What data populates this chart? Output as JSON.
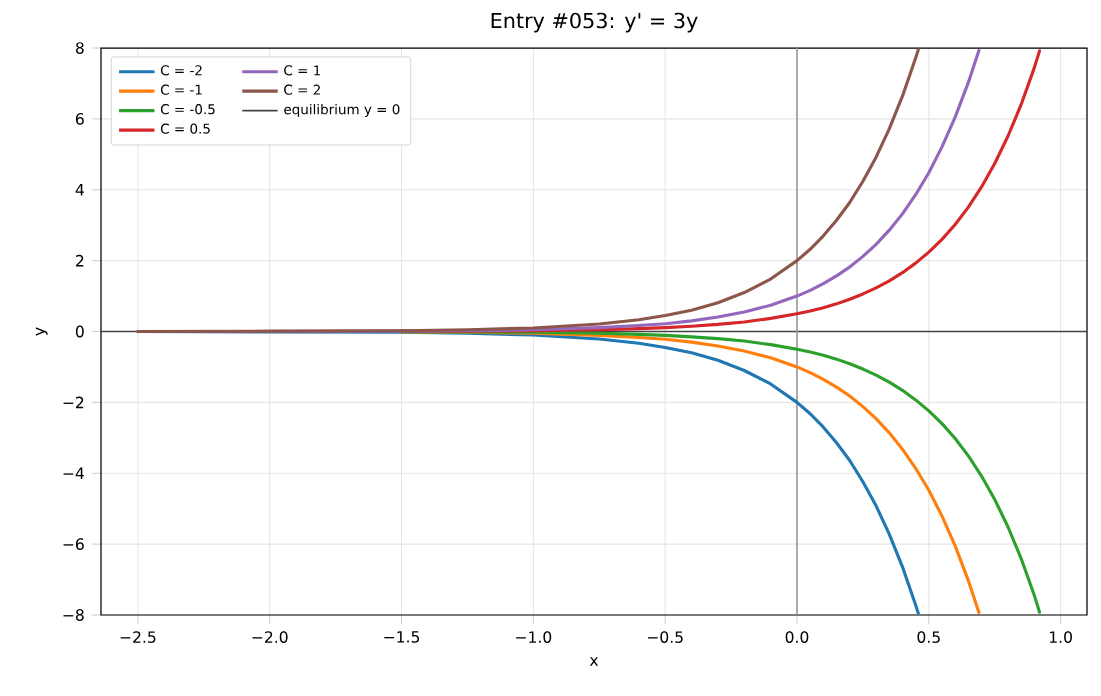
{
  "chart_data": {
    "type": "line",
    "title": "Entry #053: y' = 3y",
    "xlabel": "x",
    "ylabel": "y",
    "xlim": [
      -2.64,
      1.1
    ],
    "ylim": [
      -8,
      8
    ],
    "xticks": [
      {
        "value": -2.5,
        "label": "−2.5"
      },
      {
        "value": -2.0,
        "label": "−2.0"
      },
      {
        "value": -1.5,
        "label": "−1.5"
      },
      {
        "value": -1.0,
        "label": "−1.0"
      },
      {
        "value": -0.5,
        "label": "−0.5"
      },
      {
        "value": 0.0,
        "label": "0.0"
      },
      {
        "value": 0.5,
        "label": "0.5"
      },
      {
        "value": 1.0,
        "label": "1.0"
      }
    ],
    "yticks": [
      {
        "value": -8,
        "label": "−8"
      },
      {
        "value": -6,
        "label": "−6"
      },
      {
        "value": -4,
        "label": "−4"
      },
      {
        "value": -2,
        "label": "−2"
      },
      0,
      2,
      4,
      6,
      8
    ],
    "grid": true,
    "legend": "top left",
    "line_style": "solid",
    "marker": "none",
    "series": [
      {
        "name": "C = -2",
        "color": "#1f77b4",
        "x": [
          -2.5,
          -2,
          -1.5,
          -1.25,
          -1,
          -0.75,
          -0.6,
          -0.5,
          -0.4,
          -0.3,
          -0.2,
          -0.1,
          0,
          0.05,
          0.1,
          0.15,
          0.2,
          0.25,
          0.3,
          0.35,
          0.4,
          0.45,
          0.46
        ],
        "values": [
          0,
          -0.01,
          -0.02,
          -0.05,
          -0.1,
          -0.21,
          -0.33,
          -0.45,
          -0.6,
          -0.81,
          -1.1,
          -1.48,
          -2,
          -2.32,
          -2.7,
          -3.14,
          -3.64,
          -4.24,
          -4.92,
          -5.72,
          -6.64,
          -7.72,
          -7.95
        ]
      },
      {
        "name": "C = -1",
        "color": "#ff7f0e",
        "x": [
          -1.5,
          -1.25,
          -1,
          -0.75,
          -0.6,
          -0.5,
          -0.4,
          -0.3,
          -0.2,
          -0.1,
          0,
          0.05,
          0.1,
          0.15,
          0.2,
          0.25,
          0.3,
          0.35,
          0.4,
          0.45,
          0.5,
          0.55,
          0.6,
          0.65,
          0.69
        ],
        "values": [
          -0.01,
          -0.02,
          -0.05,
          -0.11,
          -0.17,
          -0.22,
          -0.3,
          -0.41,
          -0.55,
          -0.74,
          -1,
          -1.16,
          -1.35,
          -1.57,
          -1.82,
          -2.12,
          -2.46,
          -2.86,
          -3.32,
          -3.86,
          -4.48,
          -5.21,
          -6.05,
          -7.03,
          -7.93
        ]
      },
      {
        "name": "C = -0.5",
        "color": "#2ca02c",
        "x": [
          -1.5,
          -1.25,
          -1,
          -0.75,
          -0.6,
          -0.5,
          -0.4,
          -0.3,
          -0.2,
          -0.1,
          0,
          0.05,
          0.1,
          0.15,
          0.2,
          0.25,
          0.3,
          0.35,
          0.4,
          0.45,
          0.5,
          0.55,
          0.6,
          0.65,
          0.7,
          0.75,
          0.8,
          0.85,
          0.9,
          0.92
        ],
        "values": [
          -0.01,
          -0.01,
          -0.02,
          -0.05,
          -0.08,
          -0.11,
          -0.15,
          -0.2,
          -0.27,
          -0.37,
          -0.5,
          -0.58,
          -0.67,
          -0.78,
          -0.91,
          -1.06,
          -1.23,
          -1.43,
          -1.66,
          -1.93,
          -2.24,
          -2.6,
          -3.02,
          -3.51,
          -4.08,
          -4.74,
          -5.51,
          -6.4,
          -7.44,
          -7.92
        ]
      },
      {
        "name": "C = 0.5",
        "color": "#d62728",
        "x": [
          -1.5,
          -1.25,
          -1,
          -0.75,
          -0.6,
          -0.5,
          -0.4,
          -0.3,
          -0.2,
          -0.1,
          0,
          0.05,
          0.1,
          0.15,
          0.2,
          0.25,
          0.3,
          0.35,
          0.4,
          0.45,
          0.5,
          0.55,
          0.6,
          0.65,
          0.7,
          0.75,
          0.8,
          0.85,
          0.9,
          0.92
        ],
        "values": [
          0.01,
          0.01,
          0.02,
          0.05,
          0.08,
          0.11,
          0.15,
          0.2,
          0.27,
          0.37,
          0.5,
          0.58,
          0.67,
          0.78,
          0.91,
          1.06,
          1.23,
          1.43,
          1.66,
          1.93,
          2.24,
          2.6,
          3.02,
          3.51,
          4.08,
          4.74,
          5.51,
          6.4,
          7.44,
          7.92
        ]
      },
      {
        "name": "C = 1",
        "color": "#9467bd",
        "x": [
          -2.5,
          -2,
          -1.5,
          -1.25,
          -1,
          -0.75,
          -0.6,
          -0.5,
          -0.4,
          -0.3,
          -0.2,
          -0.1,
          0,
          0.05,
          0.1,
          0.15,
          0.2,
          0.25,
          0.3,
          0.35,
          0.4,
          0.45,
          0.5,
          0.55,
          0.6,
          0.65,
          0.69
        ],
        "values": [
          0,
          0,
          0.01,
          0.02,
          0.05,
          0.11,
          0.17,
          0.22,
          0.3,
          0.41,
          0.55,
          0.74,
          1,
          1.16,
          1.35,
          1.57,
          1.82,
          2.12,
          2.46,
          2.86,
          3.32,
          3.86,
          4.48,
          5.21,
          6.05,
          7.03,
          7.93
        ]
      },
      {
        "name": "C = 2",
        "color": "#8c564b",
        "x": [
          -2.5,
          -2,
          -1.5,
          -1.25,
          -1,
          -0.75,
          -0.6,
          -0.5,
          -0.4,
          -0.3,
          -0.2,
          -0.1,
          0,
          0.05,
          0.1,
          0.15,
          0.2,
          0.25,
          0.3,
          0.35,
          0.4,
          0.45,
          0.46
        ],
        "values": [
          0,
          0.01,
          0.02,
          0.05,
          0.1,
          0.21,
          0.33,
          0.45,
          0.6,
          0.81,
          1.1,
          1.48,
          2,
          2.32,
          2.7,
          3.14,
          3.64,
          4.24,
          4.92,
          5.72,
          6.64,
          7.72,
          7.95
        ]
      }
    ],
    "ref_lines": [
      {
        "axis": "y",
        "value": 0,
        "label": "equilibrium y = 0",
        "color": "#444444"
      },
      {
        "axis": "x",
        "value": 0,
        "color": "#999999"
      }
    ]
  }
}
